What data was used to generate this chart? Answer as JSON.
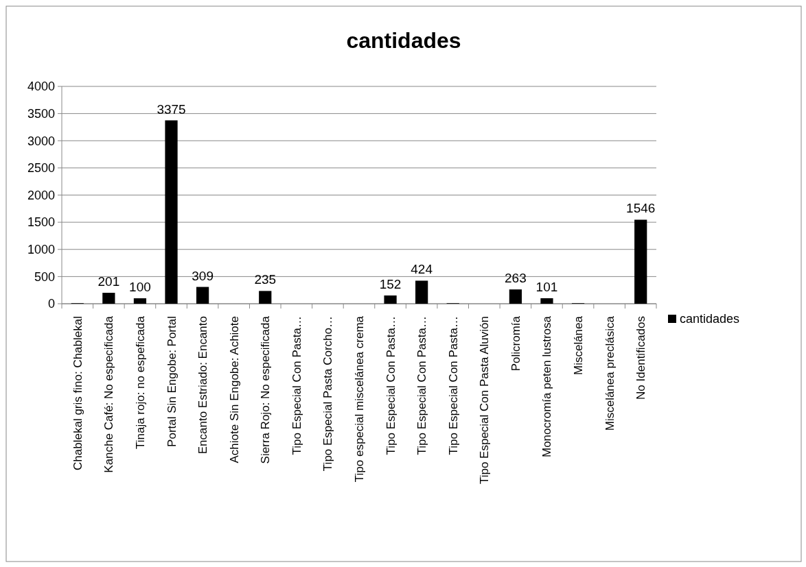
{
  "chart_data": {
    "type": "bar",
    "title": "cantidades",
    "categories": [
      "Chablekal gris fino: Chablekal",
      "Kanche Café: No especificada",
      "Tinaja rojo: no espeficada",
      "Portal Sin Engobe: Portal",
      "Encanto Estriado: Encanto",
      "Achiote Sin Engobe: Achiote",
      "Sierra Rojo: No especificada",
      "Tipo Especial Con Pasta…",
      "Tipo Especial  Pasta Corcho…",
      "Tipo especial miscelánea crema",
      "Tipo Especial Con Pasta…",
      "Tipo Especial Con Pasta…",
      "Tipo Especial Con Pasta…",
      "Tipo Especial Con Pasta Aluvión",
      "Policromía",
      "Monocromía peten lustrosa",
      "Miscelánea",
      "Miscelánea preclásica",
      "No Identificados"
    ],
    "series": [
      {
        "name": "cantidades",
        "color": "#000000",
        "values": [
          10,
          201,
          100,
          3375,
          309,
          0,
          235,
          0,
          0,
          0,
          152,
          424,
          10,
          0,
          263,
          101,
          10,
          0,
          1546
        ],
        "value_labels": [
          null,
          "201",
          "100",
          "3375",
          "309",
          null,
          "235",
          null,
          null,
          null,
          "152",
          "424",
          null,
          null,
          "263",
          "101",
          null,
          null,
          "1546"
        ]
      }
    ],
    "ylim": [
      0,
      4000
    ],
    "yticks": [
      0,
      500,
      1000,
      1500,
      2000,
      2500,
      3000,
      3500,
      4000
    ],
    "grid": "y",
    "legend": "right"
  }
}
